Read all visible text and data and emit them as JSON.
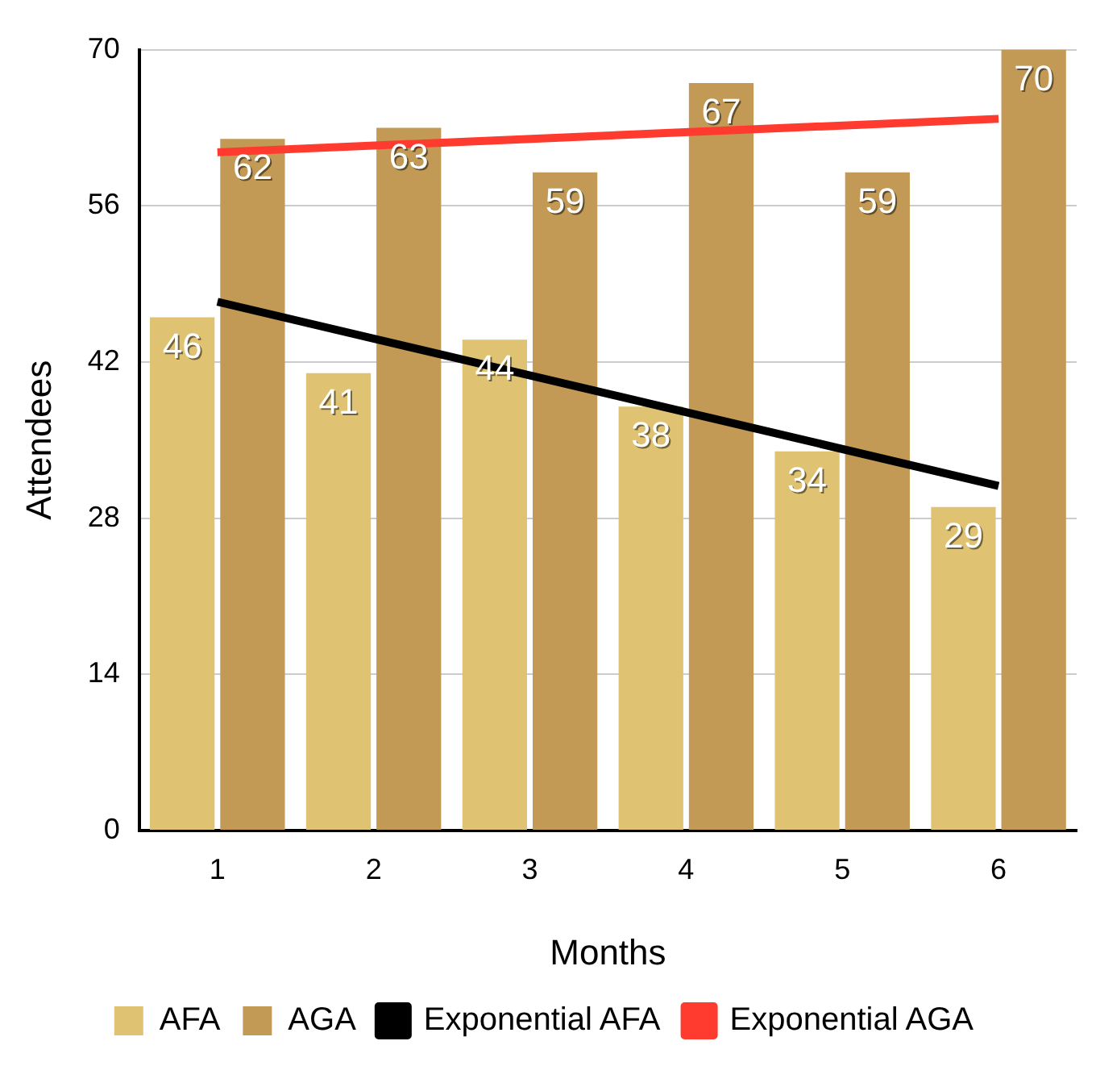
{
  "chart_data": {
    "type": "bar",
    "xlabel": "Months",
    "ylabel": "Attendees",
    "categories": [
      "1",
      "2",
      "3",
      "4",
      "5",
      "6"
    ],
    "series": [
      {
        "name": "AFA",
        "color": "#e0c372",
        "values": [
          46,
          41,
          44,
          38,
          34,
          29
        ],
        "value_labels": [
          "46",
          "41",
          "44",
          "38",
          "34",
          "29"
        ]
      },
      {
        "name": "AGA",
        "color": "#c39a55",
        "values": [
          62,
          63,
          59,
          67,
          59,
          70
        ],
        "value_labels": [
          "62",
          "63",
          "59",
          "67",
          "59",
          "70"
        ]
      },
      {
        "name": "Exponential AFA",
        "type": "line",
        "color": "#000000",
        "x": [
          "1",
          "6"
        ],
        "values": [
          47.4,
          30.9
        ]
      },
      {
        "name": "Exponential AGA",
        "type": "line",
        "color": "#ff3b30",
        "x": [
          "1",
          "6"
        ],
        "values": [
          60.8,
          63.8
        ]
      }
    ],
    "ylim": [
      0,
      70
    ],
    "yticks": [
      0,
      14,
      28,
      42,
      56,
      70
    ],
    "grid": "y",
    "legend": "bottom",
    "marker": "none"
  }
}
